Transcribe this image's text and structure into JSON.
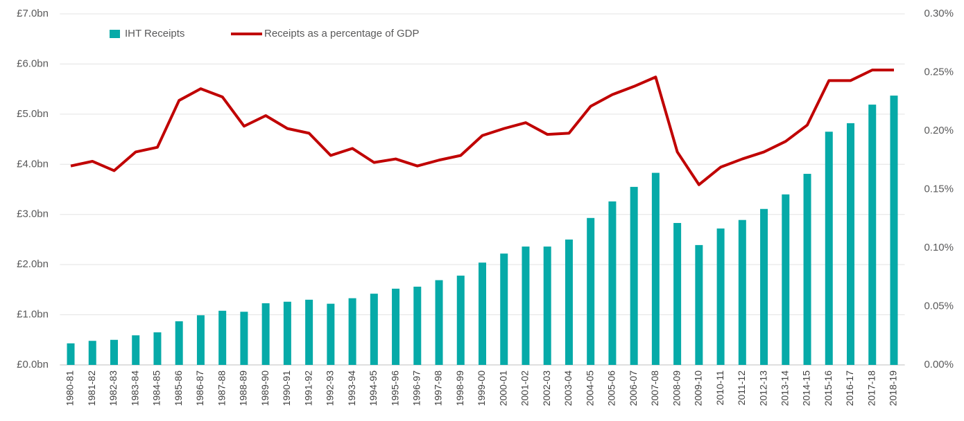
{
  "chart_data": {
    "type": "bar",
    "categories": [
      "1980-81",
      "1981-82",
      "1982-83",
      "1983-84",
      "1984-85",
      "1985-86",
      "1986-87",
      "1987-88",
      "1988-89",
      "1989-90",
      "1990-91",
      "1991-92",
      "1992-93",
      "1993-94",
      "1994-95",
      "1995-96",
      "1996-97",
      "1997-98",
      "1998-99",
      "1999-00",
      "2000-01",
      "2001-02",
      "2002-03",
      "2003-04",
      "2004-05",
      "2005-06",
      "2006-07",
      "2007-08",
      "2008-09",
      "2009-10",
      "2010-11",
      "2011-12",
      "2012-13",
      "2013-14",
      "2014-15",
      "2015-16",
      "2016-17",
      "2017-18",
      "2018-19"
    ],
    "series": [
      {
        "name": "IHT Receipts",
        "type": "bar",
        "color": "#06aaa8",
        "values": [
          0.43,
          0.48,
          0.5,
          0.59,
          0.65,
          0.87,
          0.99,
          1.08,
          1.06,
          1.23,
          1.26,
          1.3,
          1.22,
          1.33,
          1.42,
          1.52,
          1.56,
          1.69,
          1.78,
          2.04,
          2.22,
          2.36,
          2.36,
          2.5,
          2.93,
          3.26,
          3.55,
          3.83,
          2.83,
          2.39,
          2.72,
          2.89,
          3.11,
          3.4,
          3.81,
          4.65,
          4.82,
          5.19,
          5.37
        ]
      },
      {
        "name": "Receipts as a percentage of GDP",
        "type": "line",
        "axis": "y2",
        "color": "#c00000",
        "values": [
          0.17,
          0.174,
          0.166,
          0.182,
          0.186,
          0.226,
          0.236,
          0.229,
          0.204,
          0.213,
          0.202,
          0.198,
          0.179,
          0.185,
          0.173,
          0.176,
          0.17,
          0.175,
          0.179,
          0.196,
          0.202,
          0.207,
          0.197,
          0.198,
          0.221,
          0.231,
          0.238,
          0.246,
          0.182,
          0.154,
          0.169,
          0.176,
          0.182,
          0.191,
          0.205,
          0.243,
          0.243,
          0.252,
          0.252
        ]
      }
    ],
    "ylim": [
      0,
      7
    ],
    "yticks": [
      {
        "value": 0,
        "label": "£0.0bn"
      },
      {
        "value": 1,
        "label": "£1.0bn"
      },
      {
        "value": 2,
        "label": "£2.0bn"
      },
      {
        "value": 3,
        "label": "£3.0bn"
      },
      {
        "value": 4,
        "label": "£4.0bn"
      },
      {
        "value": 5,
        "label": "£5.0bn"
      },
      {
        "value": 6,
        "label": "£6.0bn"
      },
      {
        "value": 7,
        "label": "£7.0bn"
      }
    ],
    "y2lim": [
      0,
      0.3
    ],
    "y2ticks": [
      {
        "value": 0,
        "label": "0.00%"
      },
      {
        "value": 0.05,
        "label": "0.05%"
      },
      {
        "value": 0.1,
        "label": "0.10%"
      },
      {
        "value": 0.15,
        "label": "0.15%"
      },
      {
        "value": 0.2,
        "label": "0.20%"
      },
      {
        "value": 0.25,
        "label": "0.25%"
      },
      {
        "value": 0.3,
        "label": "0.30%"
      }
    ],
    "grid": true
  }
}
